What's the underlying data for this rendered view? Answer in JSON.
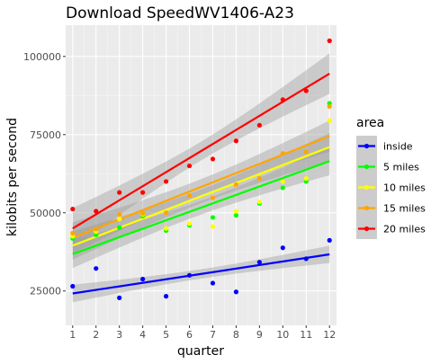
{
  "chart_data": {
    "type": "scatter",
    "title": "Download SpeedWV1406-A23",
    "xlabel": "quarter",
    "ylabel": "kilobits per second",
    "xlim": [
      0.7,
      12.3
    ],
    "ylim": [
      14000,
      110000
    ],
    "x_ticks": [
      1,
      2,
      3,
      4,
      5,
      6,
      7,
      8,
      9,
      10,
      11,
      12
    ],
    "y_ticks": [
      25000,
      50000,
      75000,
      100000
    ],
    "y_tick_labels": [
      "25000",
      "50000",
      "75000",
      "100000"
    ],
    "grid": true,
    "legend_title": "area",
    "legend_position": "right",
    "series": [
      {
        "name": "inside",
        "color": "#0000ff",
        "points": [
          [
            1,
            26500
          ],
          [
            2,
            32200
          ],
          [
            3,
            22800
          ],
          [
            4,
            28800
          ],
          [
            5,
            23300
          ],
          [
            6,
            30000
          ],
          [
            7,
            27500
          ],
          [
            8,
            24700
          ],
          [
            9,
            34200
          ],
          [
            10,
            38800
          ],
          [
            11,
            35300
          ],
          [
            12,
            41200
          ]
        ],
        "fit": [
          [
            1,
            24200
          ],
          [
            12,
            36700
          ]
        ],
        "band": [
          2800,
          1500,
          2800
        ]
      },
      {
        "name": "5 miles",
        "color": "#00ff00",
        "points": [
          [
            1,
            41800
          ],
          [
            2,
            43000
          ],
          [
            3,
            45300
          ],
          [
            4,
            49000
          ],
          [
            5,
            44300
          ],
          [
            6,
            46000
          ],
          [
            7,
            48500
          ],
          [
            8,
            49200
          ],
          [
            9,
            53000
          ],
          [
            10,
            58000
          ],
          [
            11,
            60000
          ],
          [
            12,
            85000
          ]
        ],
        "fit": [
          [
            1,
            36800
          ],
          [
            12,
            66500
          ]
        ],
        "band": [
          4500,
          2200,
          4500
        ]
      },
      {
        "name": "10 miles",
        "color": "#ffff00",
        "points": [
          [
            1,
            42500
          ],
          [
            2,
            44000
          ],
          [
            3,
            48000
          ],
          [
            4,
            49500
          ],
          [
            5,
            45000
          ],
          [
            6,
            46500
          ],
          [
            7,
            45600
          ],
          [
            8,
            50500
          ],
          [
            9,
            53500
          ],
          [
            10,
            60000
          ],
          [
            11,
            61000
          ],
          [
            12,
            79500
          ]
        ],
        "fit": [
          [
            1,
            39500
          ],
          [
            12,
            71000
          ]
        ],
        "band": [
          4500,
          2200,
          4500
        ]
      },
      {
        "name": "15 miles",
        "color": "#ffa500",
        "points": [
          [
            1,
            43500
          ],
          [
            2,
            44800
          ],
          [
            3,
            49500
          ],
          [
            4,
            49800
          ],
          [
            5,
            50000
          ],
          [
            6,
            55500
          ],
          [
            7,
            54800
          ],
          [
            8,
            59000
          ],
          [
            9,
            61000
          ],
          [
            10,
            69000
          ],
          [
            11,
            69500
          ],
          [
            12,
            84000
          ]
        ],
        "fit": [
          [
            1,
            42000
          ],
          [
            12,
            74500
          ]
        ],
        "band": [
          5000,
          2500,
          5000
        ]
      },
      {
        "name": "20 miles",
        "color": "#ff0000",
        "points": [
          [
            1,
            51200
          ],
          [
            2,
            50500
          ],
          [
            3,
            56500
          ],
          [
            4,
            56500
          ],
          [
            5,
            60000
          ],
          [
            6,
            65000
          ],
          [
            7,
            67200
          ],
          [
            8,
            73000
          ],
          [
            9,
            78000
          ],
          [
            10,
            86200
          ],
          [
            11,
            89000
          ],
          [
            12,
            105000
          ]
        ],
        "fit": [
          [
            1,
            45000
          ],
          [
            12,
            94500
          ]
        ],
        "band": [
          6500,
          3000,
          6500
        ]
      }
    ]
  }
}
